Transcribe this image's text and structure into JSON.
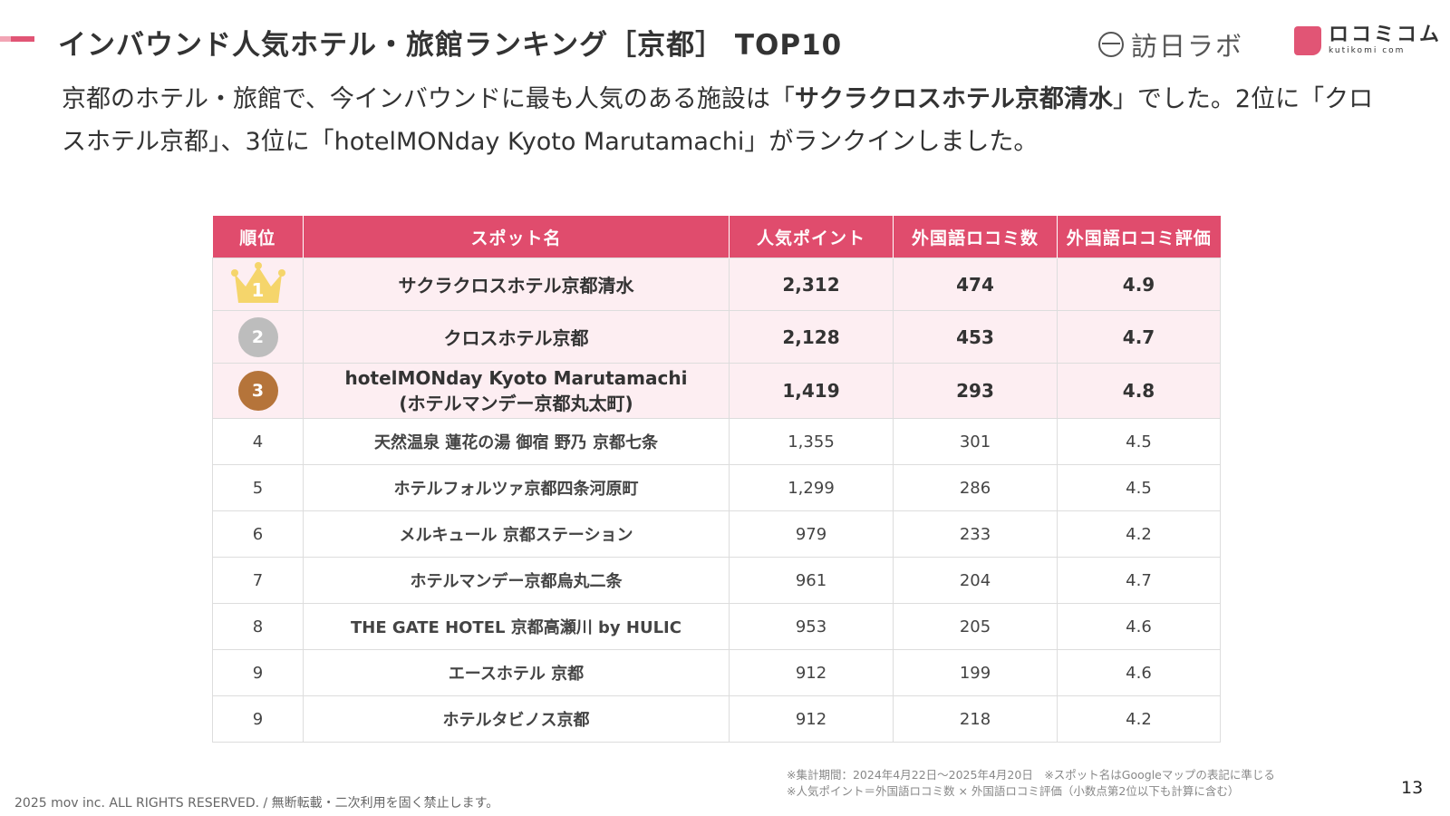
{
  "header": {
    "title": "インバウンド人気ホテル・旅館ランキング［京都］ TOP10",
    "logo_houni": "訪日ラボ",
    "logo_kuchikomi_main": "ロコミコム",
    "logo_kuchikomi_sub": "kutikomi com"
  },
  "lead": {
    "part1": "京都のホテル・旅館で、今インバウンドに最も人気のある施設は「",
    "highlight": "サクラクロスホテル京都清水",
    "part2": "」でした。2位に「クロスホテル京都」、3位に「hotelMONday Kyoto Marutamachi」がランクインしました。"
  },
  "table": {
    "headers": [
      "順位",
      "スポット名",
      "人気ポイント",
      "外国語ロコミ数",
      "外国語ロコミ評価"
    ],
    "rows": [
      {
        "rank": "1",
        "name": "サクラクロスホテル京都清水",
        "name2": "",
        "points": "2,312",
        "reviews": "474",
        "rating": "4.9"
      },
      {
        "rank": "2",
        "name": "クロスホテル京都",
        "name2": "",
        "points": "2,128",
        "reviews": "453",
        "rating": "4.7"
      },
      {
        "rank": "3",
        "name": "hotelMONday Kyoto Marutamachi",
        "name2": "(ホテルマンデー京都丸太町)",
        "points": "1,419",
        "reviews": "293",
        "rating": "4.8"
      },
      {
        "rank": "4",
        "name": "天然温泉 蓮花の湯 御宿 野乃 京都七条",
        "name2": "",
        "points": "1,355",
        "reviews": "301",
        "rating": "4.5"
      },
      {
        "rank": "5",
        "name": "ホテルフォルツァ京都四条河原町",
        "name2": "",
        "points": "1,299",
        "reviews": "286",
        "rating": "4.5"
      },
      {
        "rank": "6",
        "name": "メルキュール 京都ステーション",
        "name2": "",
        "points": "979",
        "reviews": "233",
        "rating": "4.2"
      },
      {
        "rank": "7",
        "name": "ホテルマンデー京都烏丸二条",
        "name2": "",
        "points": "961",
        "reviews": "204",
        "rating": "4.7"
      },
      {
        "rank": "8",
        "name": "THE GATE HOTEL 京都高瀬川 by HULIC",
        "name2": "",
        "points": "953",
        "reviews": "205",
        "rating": "4.6"
      },
      {
        "rank": "9",
        "name": "エースホテル 京都",
        "name2": "",
        "points": "912",
        "reviews": "199",
        "rating": "4.6"
      },
      {
        "rank": "9",
        "name": "ホテルタビノス京都",
        "name2": "",
        "points": "912",
        "reviews": "218",
        "rating": "4.2"
      }
    ]
  },
  "notes": {
    "line1": "※集計期間：2024年4月22日〜2025年4月20日　※スポット名はGoogleマップの表記に準じる",
    "line2": "※人気ポイント＝外国語ロコミ数 × 外国語ロコミ評価（小数点第2位以下も計算に含む）"
  },
  "footer": {
    "copyright": "2025 mov inc. ALL RIGHTS RESERVED. / 無断転載・二次利用を固く禁止します。",
    "page_number": "13"
  },
  "colors": {
    "accent": "#e04c6d",
    "row_highlight": "#fdeef2",
    "gold": "#f5d56b",
    "silver": "#bdbdbd",
    "bronze": "#b5743a"
  }
}
